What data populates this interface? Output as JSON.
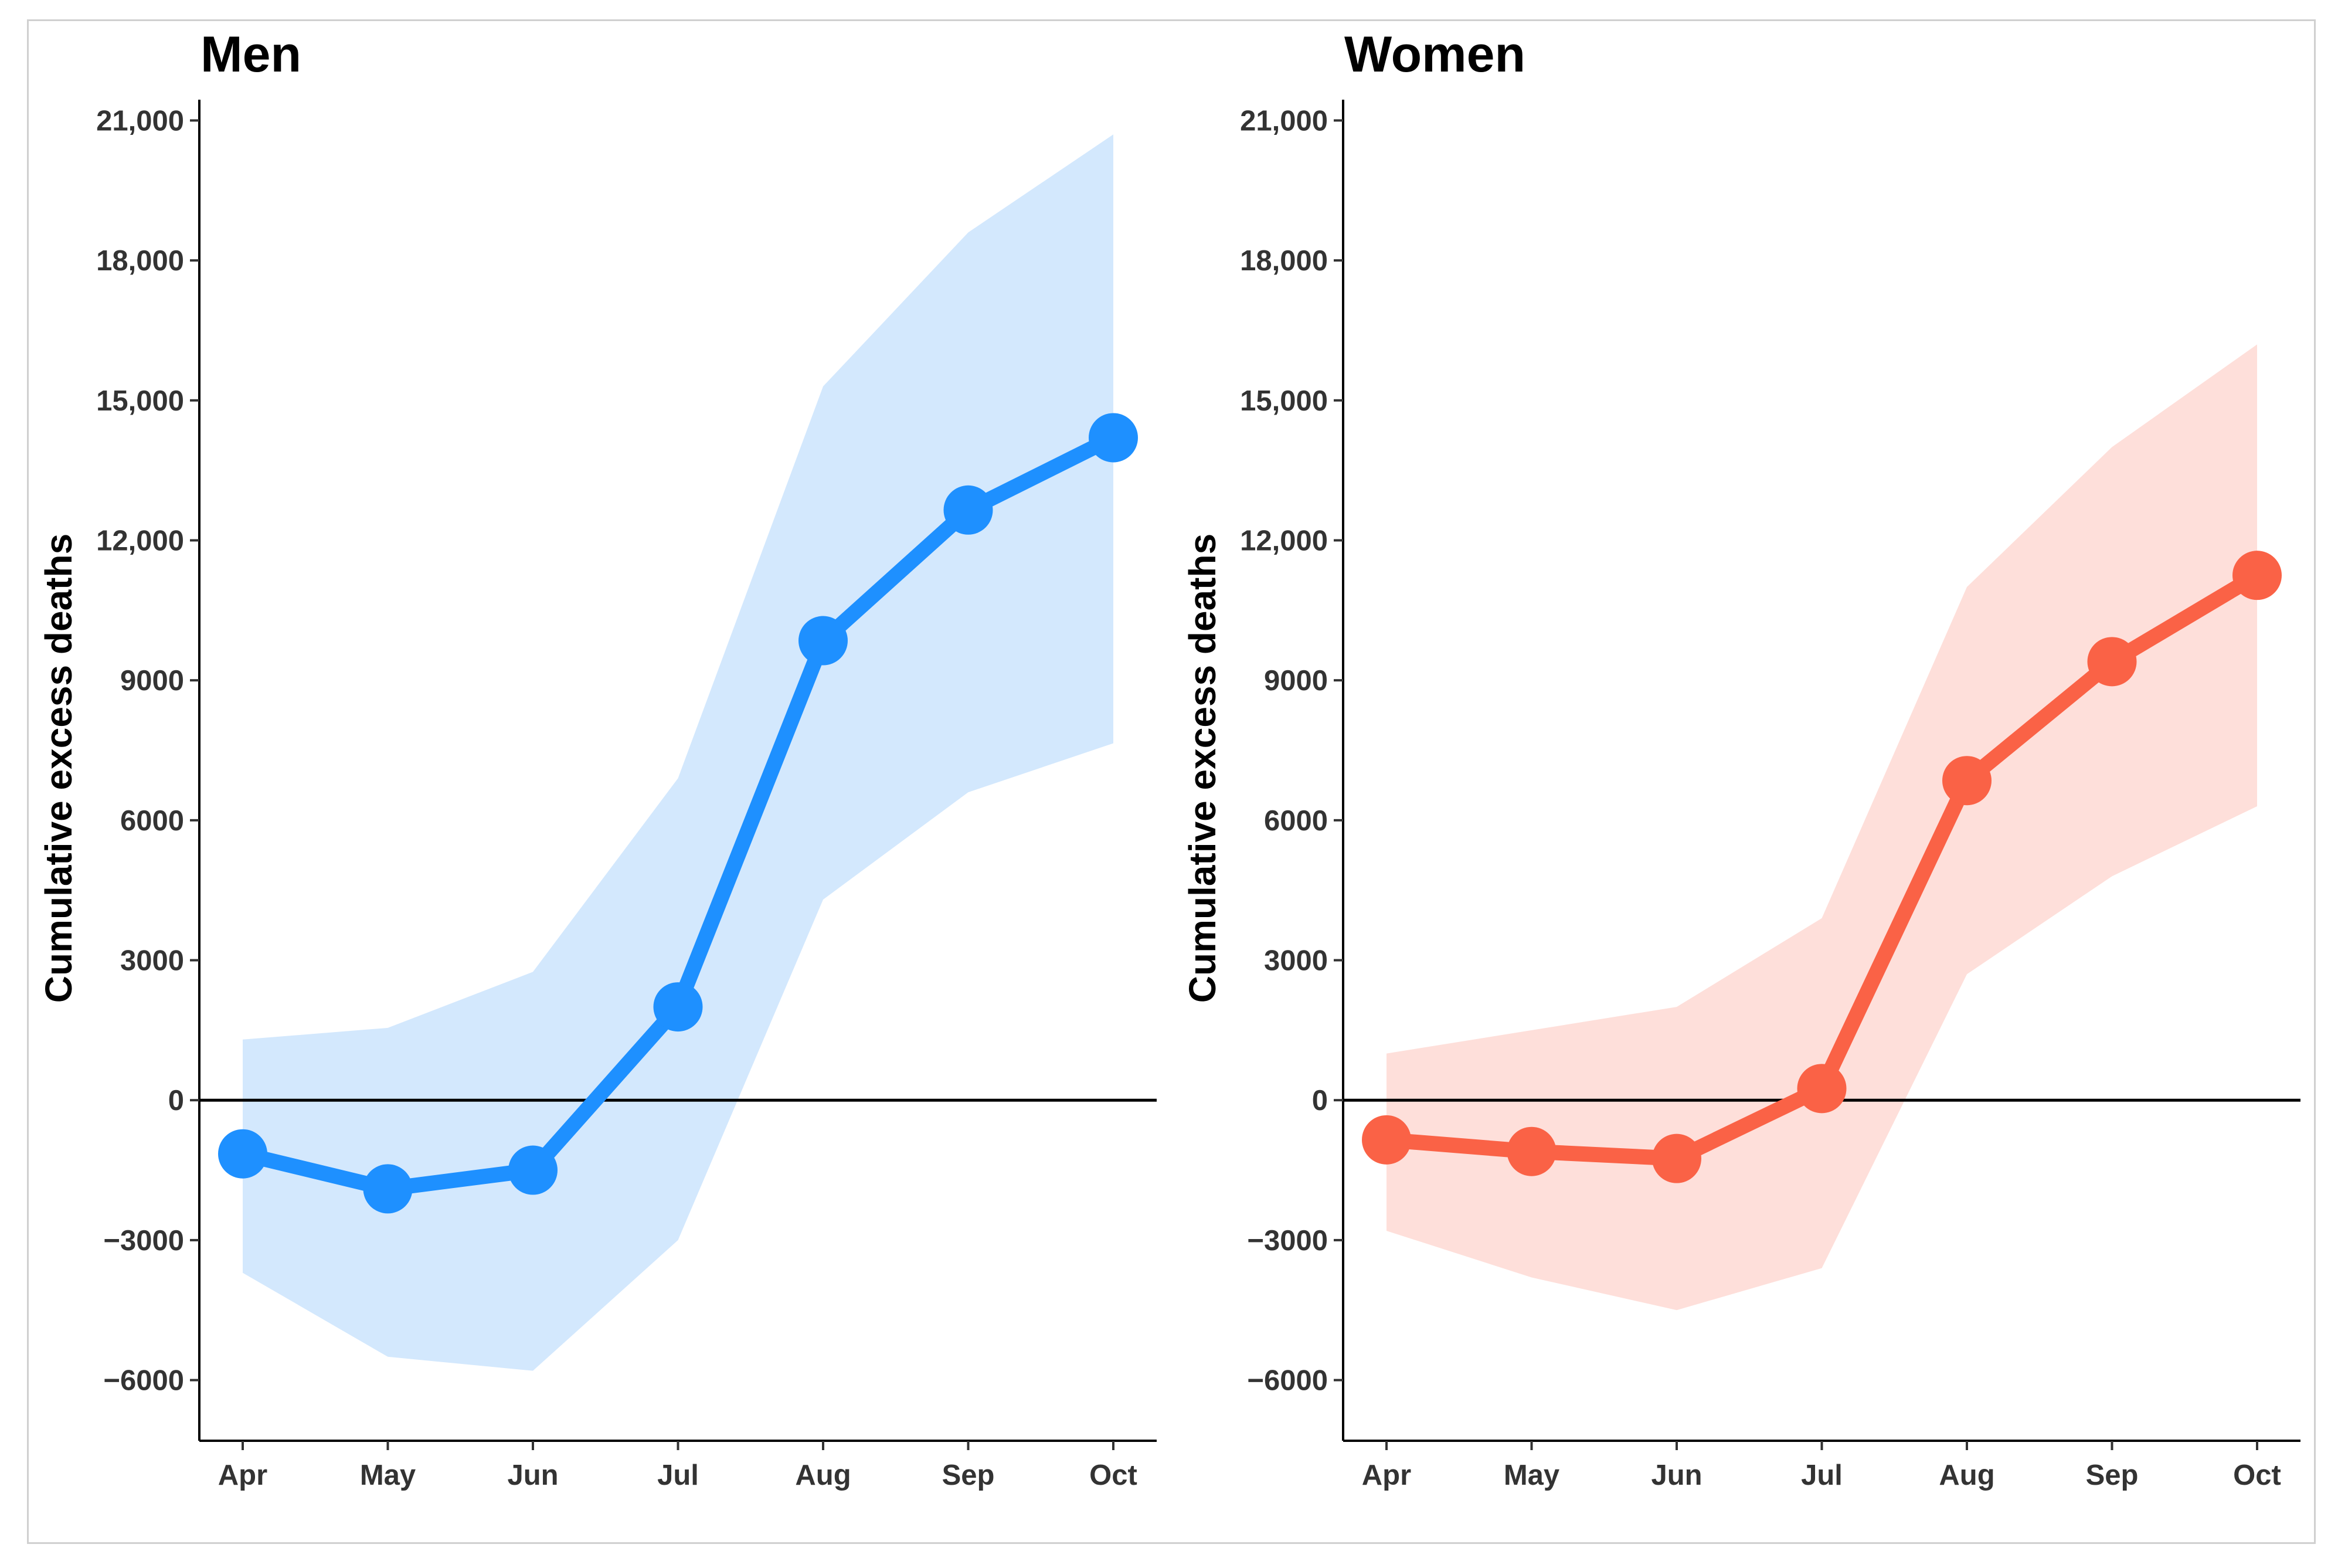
{
  "chart_data": [
    {
      "type": "line",
      "title": "Men",
      "xlabel": "",
      "ylabel": "Cumulative excess deaths",
      "categories": [
        "Apr",
        "May",
        "Jun",
        "Jul",
        "Aug",
        "Sep",
        "Oct"
      ],
      "yticks": [
        -6000,
        -3000,
        0,
        3000,
        6000,
        9000,
        12000,
        15000,
        18000,
        21000
      ],
      "ytick_labels": [
        "−6000",
        "−3000",
        "0",
        "3000",
        "6000",
        "9000",
        "12,000",
        "15,000",
        "18,000",
        "21,000"
      ],
      "ylim": [
        -7300,
        22300
      ],
      "reference_line": 0,
      "series": [
        {
          "name": "Men",
          "color": "#1e90ff",
          "band_color": "#d3e8fd",
          "values": [
            -1150,
            -1900,
            -1500,
            2000,
            9850,
            12650,
            14200
          ],
          "lower": [
            -3700,
            -5500,
            -5800,
            -3000,
            4300,
            6600,
            7650
          ],
          "upper": [
            1300,
            1550,
            2750,
            6900,
            15300,
            18600,
            20700
          ]
        }
      ]
    },
    {
      "type": "line",
      "title": "Women",
      "xlabel": "",
      "ylabel": "Cumulative excess deaths",
      "categories": [
        "Apr",
        "May",
        "Jun",
        "Jul",
        "Aug",
        "Sep",
        "Oct"
      ],
      "yticks": [
        -6000,
        -3000,
        0,
        3000,
        6000,
        9000,
        12000,
        15000,
        18000,
        21000
      ],
      "ytick_labels": [
        "−6000",
        "−3000",
        "0",
        "3000",
        "6000",
        "9000",
        "12,000",
        "15,000",
        "18,000",
        "21,000"
      ],
      "ylim": [
        -7300,
        22300
      ],
      "reference_line": 0,
      "series": [
        {
          "name": "Women",
          "color": "#fa6246",
          "band_color": "#fedfda",
          "values": [
            -850,
            -1100,
            -1250,
            250,
            6850,
            9400,
            11250
          ],
          "lower": [
            -2800,
            -3800,
            -4500,
            -3600,
            2700,
            4800,
            6300
          ],
          "upper": [
            1000,
            1500,
            2000,
            3900,
            11000,
            14000,
            16200
          ]
        }
      ]
    }
  ]
}
